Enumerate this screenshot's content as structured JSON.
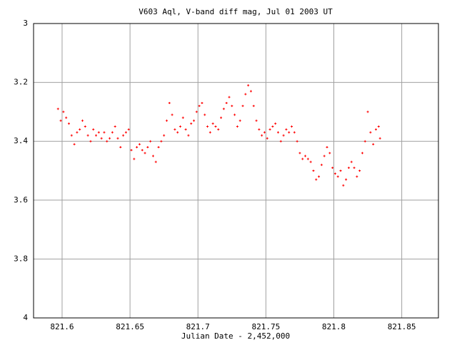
{
  "chart_data": {
    "type": "scatter",
    "title": "V603 Aql, V-band diff mag, Jul 01 2003 UT",
    "xlabel": "Julian Date - 2,452,000",
    "color": "#ff0000",
    "grid": true,
    "xlim": [
      821.579,
      821.877
    ],
    "ylim": [
      4,
      3
    ],
    "xticks": [
      821.6,
      821.65,
      821.7,
      821.75,
      821.8,
      821.85
    ],
    "yticks": [
      3,
      3.2,
      3.4,
      3.6,
      3.8,
      4
    ],
    "x": [
      821.597,
      821.599,
      821.601,
      821.603,
      821.605,
      821.607,
      821.609,
      821.611,
      821.613,
      821.615,
      821.617,
      821.619,
      821.621,
      821.623,
      821.625,
      821.627,
      821.629,
      821.631,
      821.633,
      821.635,
      821.637,
      821.639,
      821.641,
      821.643,
      821.645,
      821.647,
      821.649,
      821.651,
      821.653,
      821.655,
      821.657,
      821.659,
      821.661,
      821.663,
      821.665,
      821.667,
      821.669,
      821.671,
      821.673,
      821.675,
      821.677,
      821.679,
      821.681,
      821.683,
      821.685,
      821.687,
      821.689,
      821.691,
      821.693,
      821.695,
      821.697,
      821.699,
      821.701,
      821.703,
      821.705,
      821.707,
      821.709,
      821.711,
      821.713,
      821.715,
      821.717,
      821.719,
      821.721,
      821.723,
      821.725,
      821.727,
      821.729,
      821.731,
      821.733,
      821.735,
      821.737,
      821.739,
      821.741,
      821.743,
      821.745,
      821.747,
      821.749,
      821.751,
      821.753,
      821.755,
      821.757,
      821.759,
      821.761,
      821.763,
      821.765,
      821.767,
      821.769,
      821.771,
      821.773,
      821.775,
      821.777,
      821.779,
      821.781,
      821.783,
      821.785,
      821.787,
      821.789,
      821.791,
      821.793,
      821.795,
      821.797,
      821.799,
      821.801,
      821.803,
      821.805,
      821.807,
      821.809,
      821.811,
      821.813,
      821.815,
      821.817,
      821.819,
      821.821,
      821.823,
      821.825,
      821.827,
      821.829,
      821.831,
      821.833,
      821.834
    ],
    "values": [
      3.29,
      3.33,
      3.3,
      3.32,
      3.34,
      3.38,
      3.41,
      3.37,
      3.36,
      3.33,
      3.35,
      3.38,
      3.4,
      3.36,
      3.38,
      3.37,
      3.39,
      3.37,
      3.4,
      3.39,
      3.37,
      3.35,
      3.39,
      3.42,
      3.38,
      3.37,
      3.36,
      3.43,
      3.46,
      3.42,
      3.41,
      3.43,
      3.44,
      3.42,
      3.4,
      3.45,
      3.47,
      3.42,
      3.4,
      3.38,
      3.33,
      3.27,
      3.31,
      3.36,
      3.37,
      3.35,
      3.32,
      3.36,
      3.38,
      3.34,
      3.33,
      3.3,
      3.28,
      3.27,
      3.31,
      3.35,
      3.37,
      3.34,
      3.35,
      3.36,
      3.32,
      3.29,
      3.27,
      3.25,
      3.28,
      3.31,
      3.35,
      3.33,
      3.28,
      3.24,
      3.21,
      3.23,
      3.28,
      3.33,
      3.36,
      3.38,
      3.37,
      3.39,
      3.36,
      3.35,
      3.34,
      3.37,
      3.4,
      3.38,
      3.36,
      3.37,
      3.35,
      3.37,
      3.4,
      3.44,
      3.46,
      3.45,
      3.46,
      3.47,
      3.5,
      3.53,
      3.52,
      3.48,
      3.45,
      3.42,
      3.44,
      3.49,
      3.51,
      3.52,
      3.5,
      3.55,
      3.53,
      3.49,
      3.47,
      3.49,
      3.52,
      3.5,
      3.44,
      3.4,
      3.3,
      3.37,
      3.41,
      3.36,
      3.35,
      3.39
    ]
  }
}
